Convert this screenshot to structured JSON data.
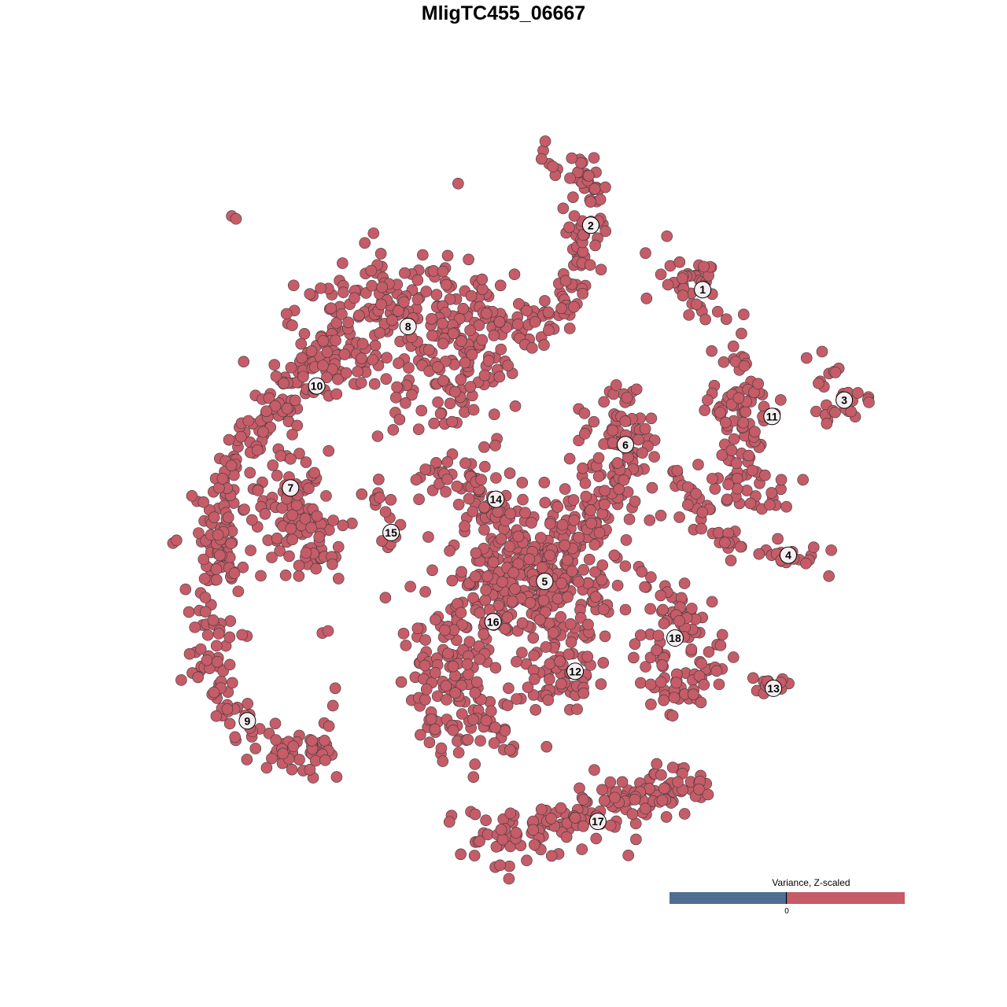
{
  "chart_data": {
    "type": "scatter",
    "title": "MligTC455_06667",
    "xlim": [
      -55,
      55
    ],
    "ylim": [
      -55,
      55
    ],
    "axes_visible": false,
    "grid": false,
    "point_color": "#c55c68",
    "point_outline": "#3a3a3a",
    "legend": {
      "title": "Variance, Z-scaled",
      "type": "colorbar",
      "placement": "bottom-right",
      "low_color": "#506e91",
      "high_color": "#c55c68",
      "tick_label": "0"
    },
    "clusters": [
      {
        "label": "1",
        "label_pos": [
          25.9,
          30.2
        ],
        "path": [
          [
            23.3,
            33.9
          ],
          [
            25,
            29.4
          ],
          [
            27.2,
            28.3
          ]
        ],
        "spread": 2,
        "n": 40
      },
      {
        "label": "2",
        "label_pos": [
          10.1,
          39.3
        ],
        "path": [
          [
            3.3,
            49.4
          ],
          [
            8.9,
            46.7
          ],
          [
            10.6,
            42.2
          ],
          [
            9.4,
            37.8
          ],
          [
            7.8,
            32.2
          ],
          [
            5.6,
            26.7
          ],
          [
            0.6,
            25
          ]
        ],
        "spread": 1.5,
        "n": 110
      },
      {
        "label": "3",
        "label_pos": [
          45.9,
          14.6
        ],
        "path": [
          [
            41.1,
            21.7
          ],
          [
            43.3,
            18.9
          ],
          [
            46.1,
            14.4
          ],
          [
            49.4,
            13.3
          ],
          [
            43.3,
            11.7
          ]
        ],
        "spread": 1,
        "n": 30
      },
      {
        "label": "4",
        "label_pos": [
          38,
          -7.3
        ],
        "path": [
          [
            21.7,
            4.4
          ],
          [
            24.4,
            -0.6
          ],
          [
            30,
            -5
          ],
          [
            37.8,
            -7.8
          ],
          [
            43.9,
            -7.8
          ]
        ],
        "spread": 1,
        "n": 60
      },
      {
        "label": "5",
        "label_pos": [
          3.6,
          -11
        ],
        "path": [
          [
            0,
            -7
          ],
          [
            4,
            -12
          ]
        ],
        "spread": 5.5,
        "n": 350
      },
      {
        "label": "6",
        "label_pos": [
          15,
          8.3
        ],
        "path": [
          [
            11.1,
            12.8
          ],
          [
            15.6,
            12.2
          ],
          [
            14.4,
            5.6
          ],
          [
            11.1,
            -1.1
          ],
          [
            8.9,
            -4.4
          ]
        ],
        "spread": 2.2,
        "n": 120
      },
      {
        "label": "7",
        "label_pos": [
          -32.3,
          2.2
        ],
        "path": [
          [
            -32.2,
            4.4
          ],
          [
            -30,
            -4.4
          ],
          [
            -29,
            -7.8
          ]
        ],
        "spread": 3,
        "n": 110
      },
      {
        "label": "8",
        "label_pos": [
          -15.7,
          25
        ],
        "path": [
          [
            -28.9,
            24.4
          ],
          [
            -18,
            28
          ],
          [
            -6.7,
            26.7
          ],
          [
            -7.8,
            16.7
          ],
          [
            -9,
            13
          ]
        ],
        "spread": 4.5,
        "n": 300
      },
      {
        "label": "9",
        "label_pos": [
          -38.4,
          -30.7
        ],
        "path": [
          [
            -41.1,
            -28.9
          ],
          [
            -35.6,
            -33.3
          ],
          [
            -30,
            -36.1
          ],
          [
            -25.6,
            -31.7
          ]
        ],
        "spread": 1.8,
        "n": 70
      },
      {
        "label": "10",
        "label_pos": [
          -28.6,
          16.6
        ],
        "path": [
          [
            -20,
            17
          ],
          [
            -24,
            20
          ],
          [
            -30,
            18
          ],
          [
            -34,
            14
          ],
          [
            -38,
            8
          ],
          [
            -40,
            4
          ],
          [
            -42.6,
            -4.4
          ],
          [
            -43.3,
            -13.3
          ],
          [
            -43.3,
            -24.4
          ],
          [
            -41.7,
            -28.3
          ]
        ],
        "spread": 1.8,
        "n": 260
      },
      {
        "label": "11",
        "label_pos": [
          35.7,
          12.3
        ],
        "path": [
          [
            30.6,
            22.2
          ],
          [
            31.7,
            17.8
          ],
          [
            33.3,
            13.3
          ],
          [
            26.7,
            15
          ],
          [
            33.9,
            7.8
          ],
          [
            31.7,
            4.4
          ],
          [
            27.8,
            2.8
          ],
          [
            37.8,
            1.1
          ]
        ],
        "spread": 1.5,
        "n": 110
      },
      {
        "label": "12",
        "label_pos": [
          7.9,
          -23.7
        ],
        "path": [
          [
            6.7,
            -22.2
          ],
          [
            5,
            -25
          ]
        ],
        "spread": 2.5,
        "n": 60
      },
      {
        "label": "13",
        "label_pos": [
          35.9,
          -26.1
        ],
        "path": [
          [
            32.8,
            -26.4
          ],
          [
            38.9,
            -24.7
          ]
        ],
        "spread": 0.8,
        "n": 12
      },
      {
        "label": "14",
        "label_pos": [
          -3.3,
          0.6
        ],
        "path": [
          [
            -15,
            3.1
          ],
          [
            -6.7,
            3.9
          ],
          [
            -4.4,
            -1.1
          ],
          [
            -2,
            -3
          ]
        ],
        "spread": 1.5,
        "n": 55
      },
      {
        "label": "15",
        "label_pos": [
          -18.1,
          -4.1
        ],
        "path": [
          [
            -22.2,
            1.7
          ],
          [
            -18.9,
            0
          ],
          [
            -18.1,
            -2.8
          ],
          [
            -20,
            -7.2
          ]
        ],
        "spread": 0.8,
        "n": 16
      },
      {
        "label": "16",
        "label_pos": [
          -3.7,
          -16.7
        ],
        "path": [
          [
            -6.7,
            -15
          ],
          [
            -3,
            -17
          ],
          [
            -13.3,
            -20
          ],
          [
            -9,
            -25.6
          ],
          [
            -11.7,
            -30.6
          ],
          [
            -4.4,
            -30.6
          ],
          [
            -1.7,
            -34.4
          ]
        ],
        "spread": 2.8,
        "n": 170
      },
      {
        "label": "17",
        "label_pos": [
          11.1,
          -44.9
        ],
        "path": [
          [
            -8.9,
            -47.2
          ],
          [
            4.4,
            -46.7
          ],
          [
            11.1,
            -43.3
          ],
          [
            21.1,
            -40.6
          ],
          [
            26.1,
            -41.1
          ]
        ],
        "spread": 2,
        "n": 170
      },
      {
        "label": "18",
        "label_pos": [
          22,
          -19
        ],
        "path": [
          [
            17.8,
            -12.2
          ],
          [
            22.2,
            -14.4
          ],
          [
            24.4,
            -17.8
          ],
          [
            27.8,
            -21.1
          ],
          [
            24.4,
            -26.7
          ],
          [
            20,
            -26.7
          ],
          [
            18.9,
            -19.4
          ]
        ],
        "spread": 1.6,
        "n": 100
      }
    ],
    "outliers": [
      [
        -40.6,
        40.6
      ],
      [
        -40,
        40.2
      ],
      [
        -48.9,
        -5.6
      ],
      [
        -48.4,
        -5.2
      ],
      [
        -27.8,
        -18.3
      ],
      [
        -27,
        -18
      ],
      [
        -18.9,
        -13.3
      ],
      [
        -17.8,
        10.4
      ],
      [
        31.7,
        26.7
      ],
      [
        20,
        -1.7
      ],
      [
        -20,
        9.5
      ],
      [
        -5.6,
        -22
      ],
      [
        15,
        -15
      ]
    ]
  }
}
